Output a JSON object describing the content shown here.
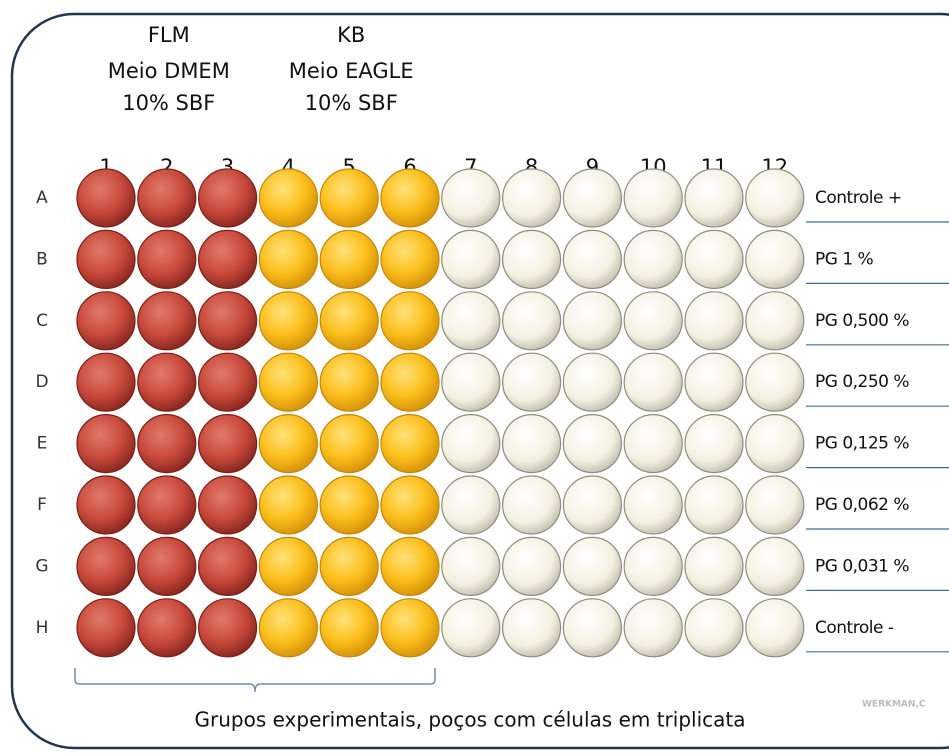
{
  "groups": [
    {
      "name": "FLM",
      "medium": "Meio DMEM",
      "serum": "10% SBF"
    },
    {
      "name": "KB",
      "medium": "Meio EAGLE",
      "serum": "10% SBF"
    }
  ],
  "columns": [
    "1",
    "2",
    "3",
    "4",
    "5",
    "6",
    "7",
    "8",
    "9",
    "10",
    "11",
    "12"
  ],
  "rows": [
    {
      "label": "A",
      "treatment": "Controle +"
    },
    {
      "label": "B",
      "treatment": "PG 1 %"
    },
    {
      "label": "C",
      "treatment": "PG 0,500 %"
    },
    {
      "label": "D",
      "treatment": "PG 0,250 %"
    },
    {
      "label": "E",
      "treatment": "PG 0,125 %"
    },
    {
      "label": "F",
      "treatment": "PG 0,062 %"
    },
    {
      "label": "G",
      "treatment": "PG 0,031 %"
    },
    {
      "label": "H",
      "treatment": "Controle -"
    }
  ],
  "caption": "Grupos experimentais, poços com células em triplicata",
  "watermark": "WERKMAN,C"
}
